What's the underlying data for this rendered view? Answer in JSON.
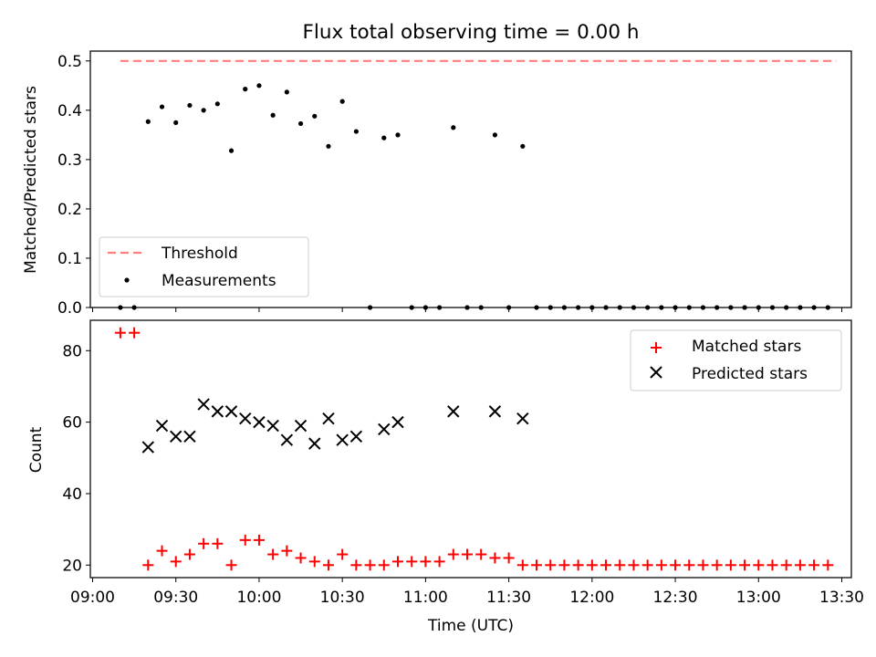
{
  "figure": {
    "title": "Flux total observing time = 0.00 h"
  },
  "chart_data": [
    {
      "type": "scatter",
      "panel": "top",
      "ylabel": "Matched/Predicted stars",
      "xlabel": "",
      "xlim": [
        "09:00",
        "13:30"
      ],
      "ylim": [
        0,
        0.52
      ],
      "yticks": [
        0.0,
        0.1,
        0.2,
        0.3,
        0.4,
        0.5
      ],
      "ytick_labels": [
        "0.0",
        "0.1",
        "0.2",
        "0.3",
        "0.4",
        "0.5"
      ],
      "legend_position": "lower-left",
      "threshold": {
        "name": "Threshold",
        "value": 0.5,
        "x_start": "09:10",
        "x_end": "13:28",
        "color": "#ff7f7f",
        "style": "dashed"
      },
      "series": [
        {
          "name": "Measurements",
          "color": "#000000",
          "marker": "dot",
          "points": [
            [
              "09:10",
              0.0
            ],
            [
              "09:15",
              0.0
            ],
            [
              "09:20",
              0.377
            ],
            [
              "09:25",
              0.407
            ],
            [
              "09:30",
              0.375
            ],
            [
              "09:35",
              0.41
            ],
            [
              "09:40",
              0.4
            ],
            [
              "09:45",
              0.413
            ],
            [
              "09:50",
              0.318
            ],
            [
              "09:55",
              0.443
            ],
            [
              "10:00",
              0.45
            ],
            [
              "10:05",
              0.39
            ],
            [
              "10:10",
              0.437
            ],
            [
              "10:15",
              0.373
            ],
            [
              "10:20",
              0.388
            ],
            [
              "10:25",
              0.327
            ],
            [
              "10:30",
              0.418
            ],
            [
              "10:35",
              0.357
            ],
            [
              "10:40",
              0.0
            ],
            [
              "10:45",
              0.344
            ],
            [
              "10:50",
              0.35
            ],
            [
              "10:55",
              0.0
            ],
            [
              "11:00",
              0.0
            ],
            [
              "11:05",
              0.0
            ],
            [
              "11:10",
              0.365
            ],
            [
              "11:15",
              0.0
            ],
            [
              "11:20",
              0.0
            ],
            [
              "11:25",
              0.35
            ],
            [
              "11:30",
              0.0
            ],
            [
              "11:35",
              0.327
            ],
            [
              "11:40",
              0.0
            ],
            [
              "11:45",
              0.0
            ],
            [
              "11:50",
              0.0
            ],
            [
              "11:55",
              0.0
            ],
            [
              "12:00",
              0.0
            ],
            [
              "12:05",
              0.0
            ],
            [
              "12:10",
              0.0
            ],
            [
              "12:15",
              0.0
            ],
            [
              "12:20",
              0.0
            ],
            [
              "12:25",
              0.0
            ],
            [
              "12:30",
              0.0
            ],
            [
              "12:35",
              0.0
            ],
            [
              "12:40",
              0.0
            ],
            [
              "12:45",
              0.0
            ],
            [
              "12:50",
              0.0
            ],
            [
              "12:55",
              0.0
            ],
            [
              "13:00",
              0.0
            ],
            [
              "13:05",
              0.0
            ],
            [
              "13:10",
              0.0
            ],
            [
              "13:15",
              0.0
            ],
            [
              "13:20",
              0.0
            ],
            [
              "13:25",
              0.0
            ]
          ]
        }
      ]
    },
    {
      "type": "scatter",
      "panel": "bottom",
      "ylabel": "Count",
      "xlabel": "Time (UTC)",
      "xlim": [
        "09:00",
        "13:30"
      ],
      "ylim": [
        16.5,
        88.5
      ],
      "yticks": [
        20,
        40,
        60,
        80
      ],
      "ytick_labels": [
        "20",
        "40",
        "60",
        "80"
      ],
      "xticks": [
        "09:00",
        "09:30",
        "10:00",
        "10:30",
        "11:00",
        "11:30",
        "12:00",
        "12:30",
        "13:00",
        "13:30"
      ],
      "xtick_labels": [
        "09:00",
        "09:30",
        "10:00",
        "10:30",
        "11:00",
        "11:30",
        "12:00",
        "12:30",
        "13:00",
        "13:30"
      ],
      "legend_position": "upper-right",
      "series": [
        {
          "name": "Matched stars",
          "color": "#ff0000",
          "marker": "plus",
          "points": [
            [
              "09:10",
              85
            ],
            [
              "09:15",
              85
            ],
            [
              "09:20",
              20
            ],
            [
              "09:25",
              24
            ],
            [
              "09:30",
              21
            ],
            [
              "09:35",
              23
            ],
            [
              "09:40",
              26
            ],
            [
              "09:45",
              26
            ],
            [
              "09:50",
              20
            ],
            [
              "09:55",
              27
            ],
            [
              "10:00",
              27
            ],
            [
              "10:05",
              23
            ],
            [
              "10:10",
              24
            ],
            [
              "10:15",
              22
            ],
            [
              "10:20",
              21
            ],
            [
              "10:25",
              20
            ],
            [
              "10:30",
              23
            ],
            [
              "10:35",
              20
            ],
            [
              "10:40",
              20
            ],
            [
              "10:45",
              20
            ],
            [
              "10:50",
              21
            ],
            [
              "10:55",
              21
            ],
            [
              "11:00",
              21
            ],
            [
              "11:05",
              21
            ],
            [
              "11:10",
              23
            ],
            [
              "11:15",
              23
            ],
            [
              "11:20",
              23
            ],
            [
              "11:25",
              22
            ],
            [
              "11:30",
              22
            ],
            [
              "11:35",
              20
            ],
            [
              "11:40",
              20
            ],
            [
              "11:45",
              20
            ],
            [
              "11:50",
              20
            ],
            [
              "11:55",
              20
            ],
            [
              "12:00",
              20
            ],
            [
              "12:05",
              20
            ],
            [
              "12:10",
              20
            ],
            [
              "12:15",
              20
            ],
            [
              "12:20",
              20
            ],
            [
              "12:25",
              20
            ],
            [
              "12:30",
              20
            ],
            [
              "12:35",
              20
            ],
            [
              "12:40",
              20
            ],
            [
              "12:45",
              20
            ],
            [
              "12:50",
              20
            ],
            [
              "12:55",
              20
            ],
            [
              "13:00",
              20
            ],
            [
              "13:05",
              20
            ],
            [
              "13:10",
              20
            ],
            [
              "13:15",
              20
            ],
            [
              "13:20",
              20
            ],
            [
              "13:25",
              20
            ]
          ]
        },
        {
          "name": "Predicted stars",
          "color": "#000000",
          "marker": "x",
          "points": [
            [
              "09:20",
              53
            ],
            [
              "09:25",
              59
            ],
            [
              "09:30",
              56
            ],
            [
              "09:35",
              56
            ],
            [
              "09:40",
              65
            ],
            [
              "09:45",
              63
            ],
            [
              "09:50",
              63
            ],
            [
              "09:55",
              61
            ],
            [
              "10:00",
              60
            ],
            [
              "10:05",
              59
            ],
            [
              "10:10",
              55
            ],
            [
              "10:15",
              59
            ],
            [
              "10:20",
              54
            ],
            [
              "10:25",
              61
            ],
            [
              "10:30",
              55
            ],
            [
              "10:35",
              56
            ],
            [
              "10:45",
              58
            ],
            [
              "10:50",
              60
            ],
            [
              "11:10",
              63
            ],
            [
              "11:25",
              63
            ],
            [
              "11:35",
              61
            ]
          ]
        }
      ]
    }
  ]
}
